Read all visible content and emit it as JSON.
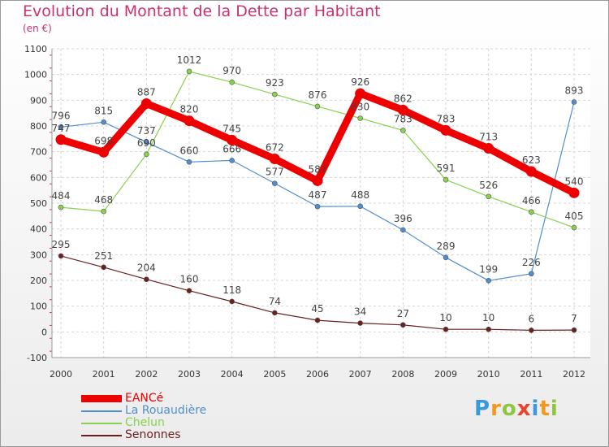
{
  "header": {
    "title": "Evolution du Montant de la Dette par Habitant",
    "unit": "(en €)"
  },
  "chart_data": {
    "type": "line",
    "x": [
      "2000",
      "2001",
      "2002",
      "2003",
      "2004",
      "2005",
      "2006",
      "2007",
      "2008",
      "2009",
      "2010",
      "2011",
      "2012"
    ],
    "ylim": [
      -100,
      1100
    ],
    "yticks": [
      -100,
      0,
      100,
      200,
      300,
      400,
      500,
      600,
      700,
      800,
      900,
      1000,
      1100
    ],
    "grid": true,
    "legend_position": "bottom-left",
    "series": [
      {
        "name": "EANCé",
        "color": "#ee0000",
        "values": [
          747,
          698,
          887,
          820,
          745,
          672,
          587,
          926,
          862,
          783,
          713,
          623,
          540
        ]
      },
      {
        "name": "La Rouaudière",
        "color": "#4f8fd0",
        "values": [
          796,
          815,
          737,
          660,
          666,
          577,
          487,
          488,
          396,
          289,
          199,
          226,
          893
        ]
      },
      {
        "name": "Chelun",
        "color": "#88d24d",
        "values": [
          484,
          468,
          690,
          1012,
          970,
          923,
          876,
          830,
          783,
          591,
          526,
          466,
          405
        ]
      },
      {
        "name": "Senonnes",
        "color": "#6b1f1f",
        "values": [
          295,
          251,
          204,
          160,
          118,
          74,
          45,
          34,
          27,
          10,
          10,
          6,
          7
        ]
      }
    ]
  },
  "logo": {
    "letters": [
      "P",
      "r",
      "o",
      "x",
      "i",
      "t",
      "i"
    ],
    "colors": [
      "#3a9ad9",
      "#f39a1e",
      "#8ec63f",
      "#e8452c",
      "#3a9ad9",
      "#f39a1e",
      "#8ec63f"
    ]
  }
}
